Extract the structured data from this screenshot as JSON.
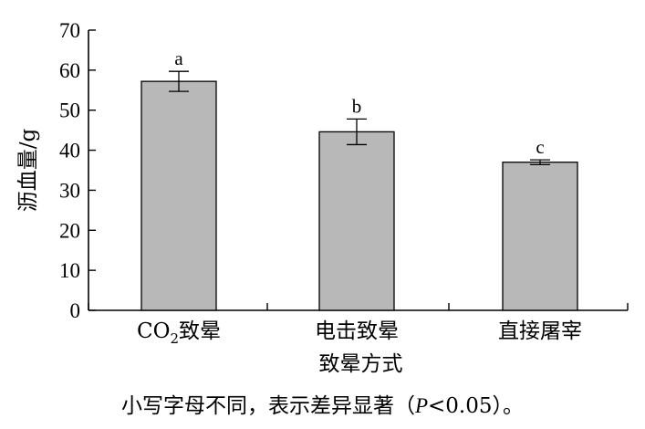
{
  "chart_data": {
    "type": "bar",
    "categories": [
      "CO2致晕",
      "电击致晕",
      "直接屠宰"
    ],
    "category_labels": [
      {
        "main": "CO",
        "sub": "2",
        "rest": "致晕"
      },
      {
        "main": "电击致晕",
        "sub": "",
        "rest": ""
      },
      {
        "main": "直接屠宰",
        "sub": "",
        "rest": ""
      }
    ],
    "values": [
      57.2,
      44.6,
      37.0
    ],
    "error": [
      2.5,
      3.2,
      0.6
    ],
    "significance_letters": [
      "a",
      "b",
      "c"
    ],
    "xlabel": "致晕方式",
    "ylabel": "沥血量/g",
    "ylim": [
      0,
      70
    ],
    "yticks": [
      0,
      10,
      20,
      30,
      40,
      50,
      60,
      70
    ],
    "bar_color": "#b8b8b8",
    "grid": false
  },
  "caption": "小写字母不同，表示差异显著（P<0.05）。",
  "caption_parts": {
    "before": "小写字母不同，表示差异显著（",
    "italic": "P",
    "after": "<0.05）。"
  }
}
